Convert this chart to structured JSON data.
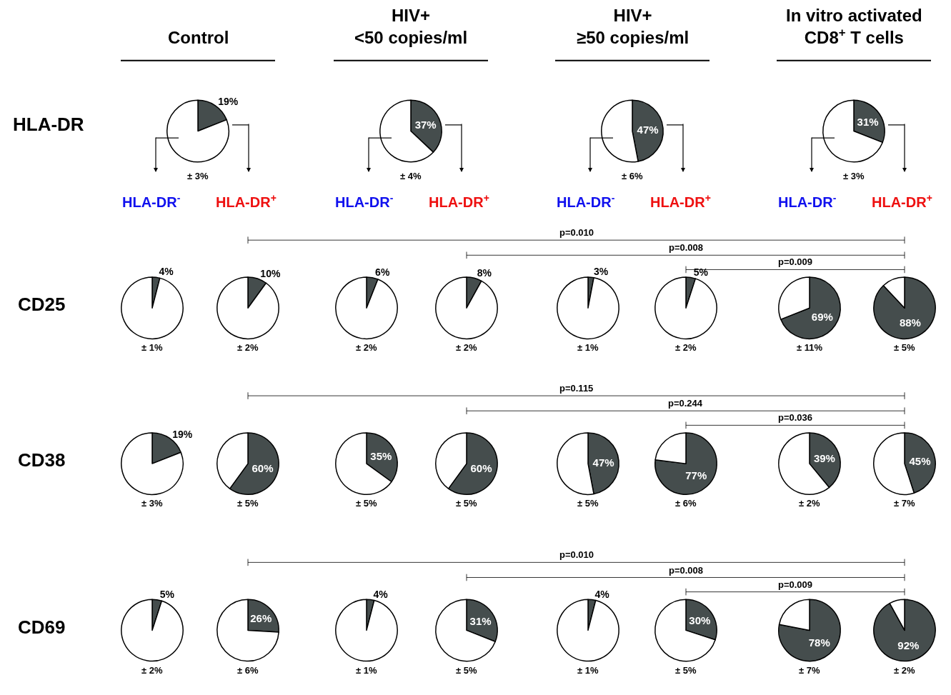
{
  "chart_data": [
    {
      "type": "pie",
      "title": "Control",
      "ylabel": "HLA-DR",
      "categories": [
        null,
        null
      ],
      "values": [
        19,
        81
      ],
      "value_labels": [
        "19%",
        null
      ],
      "colors": [
        "#454d4d",
        "#ffffff"
      ],
      "annotations": [
        "± 3%",
        "HLA-DR$^{-}$",
        "HLA-DR$^{+}$"
      ]
    },
    {
      "type": "pie",
      "title": "HIV+\n<50 copies/ml",
      "categories": [
        null,
        null
      ],
      "values": [
        37,
        63
      ],
      "value_labels": [
        "37%",
        null
      ],
      "colors": [
        "#454d4d",
        "#ffffff"
      ],
      "annotations": [
        "± 4%",
        "HLA-DR$^{-}$",
        "HLA-DR$^{+}$"
      ]
    },
    {
      "type": "pie",
      "title": "HIV+\n≥50 copies/ml",
      "categories": [
        null,
        null
      ],
      "values": [
        47,
        53
      ],
      "value_labels": [
        "47%",
        null
      ],
      "colors": [
        "#454d4d",
        "#ffffff"
      ],
      "annotations": [
        "± 6%",
        "HLA-DR$^{-}$",
        "HLA-DR$^{+}$"
      ]
    },
    {
      "type": "pie",
      "title": "In vitro activated\nCD8$^{+}$ T cells",
      "categories": [
        null,
        null
      ],
      "values": [
        31,
        69
      ],
      "value_labels": [
        "31%",
        null
      ],
      "colors": [
        "#454d4d",
        "#ffffff"
      ],
      "annotations": [
        "± 3%",
        "HLA-DR$^{-}$",
        "HLA-DR$^{+}$"
      ]
    },
    {
      "type": "pie",
      "ylabel": "CD25",
      "categories": [
        null,
        null
      ],
      "values": [
        4,
        96
      ],
      "value_labels": [
        "4%",
        null
      ],
      "colors": [
        "#454d4d",
        "#ffffff"
      ],
      "annotations": [
        "± 1%"
      ]
    },
    {
      "type": "pie",
      "categories": [
        null,
        null
      ],
      "values": [
        10,
        90
      ],
      "value_labels": [
        "10%",
        null
      ],
      "colors": [
        "#454d4d",
        "#ffffff"
      ],
      "annotations": [
        "± 2%"
      ]
    },
    {
      "type": "pie",
      "categories": [
        null,
        null
      ],
      "values": [
        6,
        94
      ],
      "value_labels": [
        "6%",
        null
      ],
      "colors": [
        "#454d4d",
        "#ffffff"
      ],
      "annotations": [
        "± 2%"
      ]
    },
    {
      "type": "pie",
      "categories": [
        null,
        null
      ],
      "values": [
        8,
        92
      ],
      "value_labels": [
        "8%",
        null
      ],
      "colors": [
        "#454d4d",
        "#ffffff"
      ],
      "annotations": [
        "± 2%"
      ]
    },
    {
      "type": "pie",
      "categories": [
        null,
        null
      ],
      "values": [
        3,
        97
      ],
      "value_labels": [
        "3%",
        null
      ],
      "colors": [
        "#454d4d",
        "#ffffff"
      ],
      "annotations": [
        "± 1%"
      ]
    },
    {
      "type": "pie",
      "categories": [
        null,
        null
      ],
      "values": [
        5,
        95
      ],
      "value_labels": [
        "5%",
        null
      ],
      "colors": [
        "#454d4d",
        "#ffffff"
      ],
      "annotations": [
        "± 2%"
      ]
    },
    {
      "type": "pie",
      "categories": [
        null,
        null
      ],
      "values": [
        69,
        31
      ],
      "value_labels": [
        "69%",
        null
      ],
      "colors": [
        "#454d4d",
        "#ffffff"
      ],
      "annotations": [
        "± 11%"
      ]
    },
    {
      "type": "pie",
      "categories": [
        null,
        null
      ],
      "values": [
        88,
        12
      ],
      "value_labels": [
        "88%",
        null
      ],
      "colors": [
        "#454d4d",
        "#ffffff"
      ],
      "annotations": [
        "± 5%",
        "p=0.010",
        "p=0.008",
        "p=0.009"
      ]
    },
    {
      "type": "pie",
      "ylabel": "CD38",
      "categories": [
        null,
        null
      ],
      "values": [
        19,
        81
      ],
      "value_labels": [
        "19%",
        null
      ],
      "colors": [
        "#454d4d",
        "#ffffff"
      ],
      "annotations": [
        "± 3%"
      ]
    },
    {
      "type": "pie",
      "categories": [
        null,
        null
      ],
      "values": [
        60,
        40
      ],
      "value_labels": [
        "60%",
        null
      ],
      "colors": [
        "#454d4d",
        "#ffffff"
      ],
      "annotations": [
        "± 5%"
      ]
    },
    {
      "type": "pie",
      "categories": [
        null,
        null
      ],
      "values": [
        35,
        65
      ],
      "value_labels": [
        "35%",
        null
      ],
      "colors": [
        "#454d4d",
        "#ffffff"
      ],
      "annotations": [
        "± 5%"
      ]
    },
    {
      "type": "pie",
      "categories": [
        null,
        null
      ],
      "values": [
        60,
        40
      ],
      "value_labels": [
        "60%",
        null
      ],
      "colors": [
        "#454d4d",
        "#ffffff"
      ],
      "annotations": [
        "± 5%"
      ]
    },
    {
      "type": "pie",
      "categories": [
        null,
        null
      ],
      "values": [
        47,
        53
      ],
      "value_labels": [
        "47%",
        null
      ],
      "colors": [
        "#454d4d",
        "#ffffff"
      ],
      "annotations": [
        "± 5%"
      ]
    },
    {
      "type": "pie",
      "categories": [
        null,
        null
      ],
      "values": [
        77,
        23
      ],
      "value_labels": [
        "77%",
        null
      ],
      "colors": [
        "#454d4d",
        "#ffffff"
      ],
      "annotations": [
        "± 6%"
      ]
    },
    {
      "type": "pie",
      "categories": [
        null,
        null
      ],
      "values": [
        39,
        61
      ],
      "value_labels": [
        "39%",
        null
      ],
      "colors": [
        "#454d4d",
        "#ffffff"
      ],
      "annotations": [
        "± 2%"
      ]
    },
    {
      "type": "pie",
      "categories": [
        null,
        null
      ],
      "values": [
        45,
        55
      ],
      "value_labels": [
        "45%",
        null
      ],
      "colors": [
        "#454d4d",
        "#ffffff"
      ],
      "annotations": [
        "± 7%",
        "p=0.115",
        "p=0.244",
        "p=0.036"
      ]
    },
    {
      "type": "pie",
      "ylabel": "CD69",
      "categories": [
        null,
        null
      ],
      "values": [
        5,
        95
      ],
      "value_labels": [
        "5%",
        null
      ],
      "colors": [
        "#454d4d",
        "#ffffff"
      ],
      "annotations": [
        "± 2%"
      ]
    },
    {
      "type": "pie",
      "categories": [
        null,
        null
      ],
      "values": [
        26,
        74
      ],
      "value_labels": [
        "26%",
        null
      ],
      "colors": [
        "#454d4d",
        "#ffffff"
      ],
      "annotations": [
        "± 6%"
      ]
    },
    {
      "type": "pie",
      "categories": [
        null,
        null
      ],
      "values": [
        4,
        96
      ],
      "value_labels": [
        "4%",
        null
      ],
      "colors": [
        "#454d4d",
        "#ffffff"
      ],
      "annotations": [
        "± 1%"
      ]
    },
    {
      "type": "pie",
      "categories": [
        null,
        null
      ],
      "values": [
        31,
        69
      ],
      "value_labels": [
        "31%",
        null
      ],
      "colors": [
        "#454d4d",
        "#ffffff"
      ],
      "annotations": [
        "± 5%"
      ]
    },
    {
      "type": "pie",
      "categories": [
        null,
        null
      ],
      "values": [
        4,
        96
      ],
      "value_labels": [
        "4%",
        null
      ],
      "colors": [
        "#454d4d",
        "#ffffff"
      ],
      "annotations": [
        "± 1%"
      ]
    },
    {
      "type": "pie",
      "categories": [
        null,
        null
      ],
      "values": [
        30,
        70
      ],
      "value_labels": [
        "30%",
        null
      ],
      "colors": [
        "#454d4d",
        "#ffffff"
      ],
      "annotations": [
        "± 5%"
      ]
    },
    {
      "type": "pie",
      "categories": [
        null,
        null
      ],
      "values": [
        78,
        22
      ],
      "value_labels": [
        "78%",
        null
      ],
      "colors": [
        "#454d4d",
        "#ffffff"
      ],
      "annotations": [
        "± 7%"
      ]
    },
    {
      "type": "pie",
      "categories": [
        null,
        null
      ],
      "values": [
        92,
        8
      ],
      "value_labels": [
        "92%",
        null
      ],
      "colors": [
        "#454d4d",
        "#ffffff"
      ],
      "annotations": [
        "± 2%",
        "p=0.010",
        "p=0.008",
        "p=0.009"
      ]
    }
  ]
}
